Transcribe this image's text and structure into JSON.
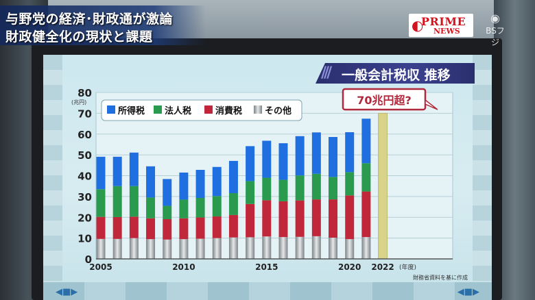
{
  "caption": {
    "line1": "与野党の経済･財政通が激論",
    "line2": "財政健全化の現状と課題"
  },
  "logo": {
    "name": "PRIME NEWS",
    "channel": "BSフジ"
  },
  "chart_title": "一般会計税収 推移",
  "colors": {
    "income_tax": "#1f6fe0",
    "corporate_tax": "#2a9a4e",
    "consumption_tax": "#c1273a",
    "other": "#9ea3a7",
    "forecast": "#d7d38a",
    "callout_border": "#b0283c",
    "title_banner": "#2f3580"
  },
  "chart_data": {
    "type": "bar",
    "stacked": true,
    "years": [
      "2005",
      "2006",
      "2007",
      "2008",
      "2009",
      "2010",
      "2011",
      "2012",
      "2013",
      "2014",
      "2015",
      "2016",
      "2017",
      "2018",
      "2019",
      "2020",
      "2021",
      "2022"
    ],
    "x_tick_labels": [
      "2005",
      "2010",
      "2015",
      "2020",
      "2022"
    ],
    "x_unit": "(年度)",
    "y_unit": "(兆円)",
    "ylim": [
      0,
      80
    ],
    "y_ticks": [
      0,
      10,
      20,
      30,
      40,
      50,
      60,
      70,
      80
    ],
    "series": [
      {
        "name": "所得税",
        "color": "#1f6fe0",
        "values": [
          15.6,
          14.1,
          16.1,
          15.0,
          12.9,
          13.0,
          13.5,
          14.0,
          15.5,
          16.8,
          17.8,
          17.6,
          18.9,
          19.9,
          19.2,
          19.2,
          21.4,
          null
        ]
      },
      {
        "name": "法人税",
        "color": "#2a9a4e",
        "values": [
          13.3,
          14.9,
          14.7,
          10.0,
          6.4,
          9.0,
          9.4,
          9.8,
          10.5,
          11.0,
          10.8,
          10.3,
          12.0,
          12.3,
          10.8,
          11.2,
          13.6,
          null
        ]
      },
      {
        "name": "消費税",
        "color": "#c1273a",
        "values": [
          10.6,
          10.5,
          10.3,
          10.0,
          9.8,
          10.0,
          10.2,
          10.4,
          10.8,
          16.0,
          17.4,
          17.2,
          17.5,
          17.7,
          18.4,
          21.0,
          21.9,
          null
        ]
      },
      {
        "name": "その他",
        "color": "#9ea3a7",
        "values": [
          9.6,
          9.6,
          10.0,
          9.5,
          9.3,
          9.5,
          9.7,
          10.0,
          10.3,
          10.4,
          10.8,
          10.5,
          10.6,
          10.9,
          10.2,
          9.5,
          10.5,
          null
        ]
      }
    ],
    "forecast": {
      "year": "2022",
      "value": 70,
      "label": "70兆円超?"
    },
    "legend_position": "top-left",
    "source": "財務省資料を基に作成"
  }
}
